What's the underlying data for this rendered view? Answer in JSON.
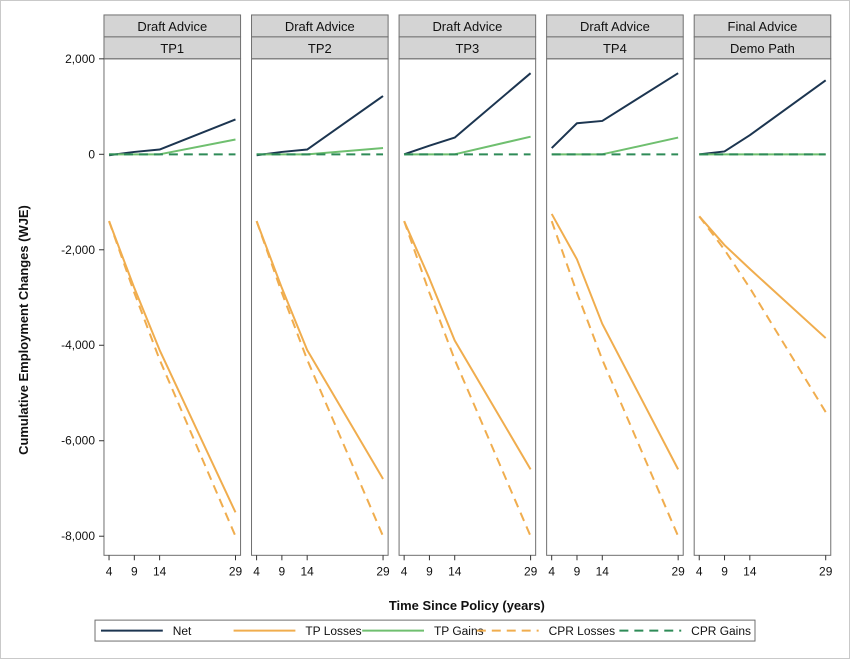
{
  "chart_data": {
    "type": "line",
    "xlabel": "Time Since Policy (years)",
    "ylabel": "Cumulative Employment Changes (WJE)",
    "x_ticks": [
      4,
      9,
      14,
      29
    ],
    "xlim": [
      3,
      30
    ],
    "y_ticks": [
      2000,
      0,
      -2000,
      -4000,
      -6000,
      -8000
    ],
    "y_tick_labels": [
      "2,000",
      "0",
      "-2,000",
      "-4,000",
      "-6,000",
      "-8,000"
    ],
    "ylim": [
      -8400,
      2000
    ],
    "colors": {
      "net": "#1c3550",
      "tp_losses": "#f0ad4e",
      "tp_gains": "#6fbf6f",
      "cpr_losses": "#f0ad4e",
      "cpr_gains": "#2e8b57"
    },
    "legend": {
      "placement": "bottom",
      "entries": [
        {
          "key": "net",
          "label": "Net",
          "dash": false
        },
        {
          "key": "tp_losses",
          "label": "TP Losses",
          "dash": false
        },
        {
          "key": "tp_gains",
          "label": "TP Gains",
          "dash": false
        },
        {
          "key": "cpr_losses",
          "label": "CPR Losses",
          "dash": true
        },
        {
          "key": "cpr_gains",
          "label": "CPR Gains",
          "dash": true
        }
      ]
    },
    "panels": [
      {
        "group": "Draft Advice",
        "name": "TP1",
        "series": {
          "net": {
            "x": [
              4,
              9,
              14,
              29
            ],
            "y": [
              -20,
              50,
              100,
              730
            ]
          },
          "tp_losses": {
            "x": [
              4,
              9,
              14,
              29
            ],
            "y": [
              -1400,
              -2800,
              -4100,
              -7500
            ]
          },
          "tp_gains": {
            "x": [
              4,
              9,
              14,
              29
            ],
            "y": [
              0,
              0,
              0,
              310
            ]
          },
          "cpr_losses": {
            "x": [
              4,
              9,
              14,
              29
            ],
            "y": [
              -1400,
              -2900,
              -4300,
              -8000
            ]
          },
          "cpr_gains": {
            "x": [
              4,
              9,
              14,
              29
            ],
            "y": [
              0,
              0,
              0,
              0
            ]
          }
        }
      },
      {
        "group": "Draft Advice",
        "name": "TP2",
        "series": {
          "net": {
            "x": [
              4,
              9,
              14,
              29
            ],
            "y": [
              -20,
              50,
              100,
              1220
            ]
          },
          "tp_losses": {
            "x": [
              4,
              9,
              14,
              29
            ],
            "y": [
              -1400,
              -2800,
              -4100,
              -6800
            ]
          },
          "tp_gains": {
            "x": [
              4,
              9,
              14,
              29
            ],
            "y": [
              0,
              0,
              0,
              130
            ]
          },
          "cpr_losses": {
            "x": [
              4,
              9,
              14,
              29
            ],
            "y": [
              -1400,
              -2900,
              -4300,
              -8000
            ]
          },
          "cpr_gains": {
            "x": [
              4,
              9,
              14,
              29
            ],
            "y": [
              0,
              0,
              0,
              0
            ]
          }
        }
      },
      {
        "group": "Draft Advice",
        "name": "TP3",
        "series": {
          "net": {
            "x": [
              4,
              9,
              14,
              29
            ],
            "y": [
              0,
              180,
              350,
              1700
            ]
          },
          "tp_losses": {
            "x": [
              4,
              9,
              14,
              29
            ],
            "y": [
              -1400,
              -2600,
              -3900,
              -6600
            ]
          },
          "tp_gains": {
            "x": [
              4,
              9,
              14,
              29
            ],
            "y": [
              0,
              0,
              0,
              370
            ]
          },
          "cpr_losses": {
            "x": [
              4,
              9,
              14,
              29
            ],
            "y": [
              -1400,
              -2900,
              -4300,
              -8000
            ]
          },
          "cpr_gains": {
            "x": [
              4,
              9,
              14,
              29
            ],
            "y": [
              0,
              0,
              0,
              0
            ]
          }
        }
      },
      {
        "group": "Draft Advice",
        "name": "TP4",
        "series": {
          "net": {
            "x": [
              4,
              9,
              14,
              29
            ],
            "y": [
              130,
              650,
              700,
              1700
            ]
          },
          "tp_losses": {
            "x": [
              4,
              9,
              14,
              29
            ],
            "y": [
              -1250,
              -2200,
              -3550,
              -6600
            ]
          },
          "tp_gains": {
            "x": [
              4,
              9,
              14,
              29
            ],
            "y": [
              0,
              0,
              0,
              350
            ]
          },
          "cpr_losses": {
            "x": [
              4,
              9,
              14,
              29
            ],
            "y": [
              -1400,
              -2900,
              -4300,
              -8000
            ]
          },
          "cpr_gains": {
            "x": [
              4,
              9,
              14,
              29
            ],
            "y": [
              0,
              0,
              0,
              0
            ]
          }
        }
      },
      {
        "group": "Final Advice",
        "name": "Demo Path",
        "series": {
          "net": {
            "x": [
              4,
              9,
              14,
              29
            ],
            "y": [
              0,
              60,
              400,
              1550
            ]
          },
          "tp_losses": {
            "x": [
              4,
              9,
              14,
              29
            ],
            "y": [
              -1300,
              -1900,
              -2400,
              -3850
            ]
          },
          "tp_gains": {
            "x": [
              4,
              9,
              14,
              29
            ],
            "y": [
              0,
              0,
              0,
              0
            ]
          },
          "cpr_losses": {
            "x": [
              4,
              9,
              14,
              29
            ],
            "y": [
              -1300,
              -2000,
              -2800,
              -5400
            ]
          },
          "cpr_gains": {
            "x": [
              4,
              9,
              14,
              29
            ],
            "y": [
              0,
              0,
              0,
              0
            ]
          }
        }
      }
    ]
  }
}
